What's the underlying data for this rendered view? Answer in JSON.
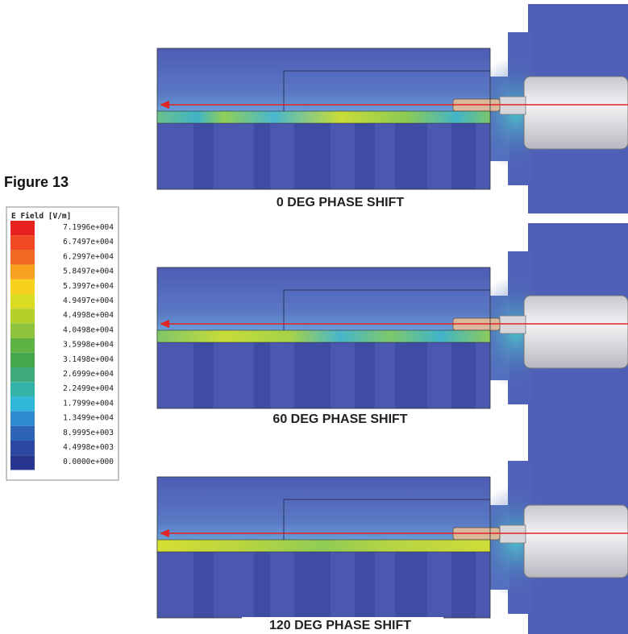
{
  "figure": {
    "title": "Figure 13",
    "legend": {
      "title": "E Field [V/m]",
      "labels": [
        "7.1996e+004",
        "6.7497e+004",
        "6.2997e+004",
        "5.8497e+004",
        "5.3997e+004",
        "4.9497e+004",
        "4.4998e+004",
        "4.0498e+004",
        "3.5998e+004",
        "3.1498e+004",
        "2.6999e+004",
        "2.2499e+004",
        "1.7999e+004",
        "1.3499e+004",
        "8.9995e+003",
        "4.4998e+003",
        "0.0000e+000"
      ],
      "colors": [
        "#e8221e",
        "#f04a24",
        "#f26a22",
        "#f7a21f",
        "#f6d21e",
        "#d9dc21",
        "#b5cf2b",
        "#8ec33b",
        "#5fb345",
        "#46a84a",
        "#3eab7a",
        "#35b3a8",
        "#2fb6d9",
        "#2f8bd0",
        "#2f63b6",
        "#2d48a3",
        "#2a3591"
      ]
    },
    "panels": [
      {
        "caption": "0 DEG PHASE SHIFT"
      },
      {
        "caption": "60 DEG PHASE SHIFT"
      },
      {
        "caption": "120 DEG PHASE SHIFT"
      }
    ]
  }
}
